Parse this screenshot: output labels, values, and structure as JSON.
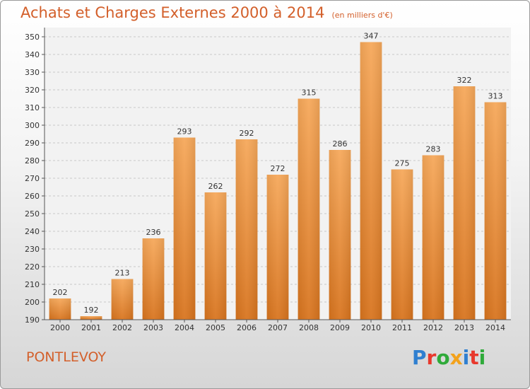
{
  "header": {
    "title": "Achats et Charges Externes 2000 à 2014",
    "subtitle": "(en milliers d'€)"
  },
  "footer": {
    "place": "PONTLEVOY",
    "logo_text": "Proxiti"
  },
  "colors": {
    "title": "#d35f2a",
    "bar_light": "#f6a85a",
    "bar_dark": "#d8741e",
    "logo": [
      "#2f7fd0",
      "#e8382c",
      "#2faa3a",
      "#f3a21c",
      "#2f7fd0",
      "#e8382c",
      "#2faa3a"
    ]
  },
  "chart_data": {
    "type": "bar",
    "categories": [
      "2000",
      "2001",
      "2002",
      "2003",
      "2004",
      "2005",
      "2006",
      "2007",
      "2008",
      "2009",
      "2010",
      "2011",
      "2012",
      "2013",
      "2014"
    ],
    "values": [
      202,
      192,
      213,
      236,
      293,
      262,
      292,
      272,
      315,
      286,
      347,
      275,
      283,
      322,
      313
    ],
    "ylim": [
      190,
      350
    ],
    "yticks": [
      190,
      200,
      210,
      220,
      230,
      240,
      250,
      260,
      270,
      280,
      290,
      300,
      310,
      320,
      330,
      340,
      350
    ],
    "grid": true,
    "data_labels": true
  }
}
